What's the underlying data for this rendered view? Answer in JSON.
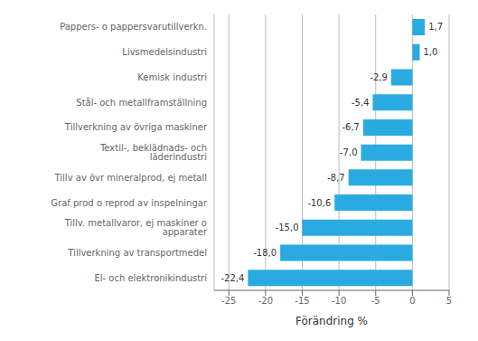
{
  "chart_data": {
    "type": "bar",
    "orientation": "horizontal",
    "categories": [
      "El- och elektronikindustri",
      "Tillverkning av transportmedel",
      "Tillv. metallvaror, ej maskiner o apparater",
      "Graf prod o reprod av inspelningar",
      "Tillv av övr mineralprod, ej metall",
      "Textil-, beklädnads- och läderindustri",
      "Tillverkning av övriga maskiner",
      "Stål- och metallframställning",
      "Kemisk industri",
      "Livsmedelsindustri",
      "Pappers- o pappersvarutillverkn."
    ],
    "values": [
      -22.4,
      -18.0,
      -15.0,
      -10.6,
      -8.7,
      -7.0,
      -6.7,
      -5.4,
      -2.9,
      1.0,
      1.7
    ],
    "value_labels": [
      "-22,4",
      "-18,0",
      "-15,0",
      "-10,6",
      "-8,7",
      "-7,0",
      "-6,7",
      "-5,4",
      "-2,9",
      "1,0",
      "1,7"
    ],
    "data_labels": true,
    "color": "#29ABE2",
    "xlabel": "Förändring %",
    "xlim": [
      -27,
      5
    ],
    "xticks": [
      -25,
      -20,
      -15,
      -10,
      -5,
      0,
      5
    ],
    "grid": true
  }
}
